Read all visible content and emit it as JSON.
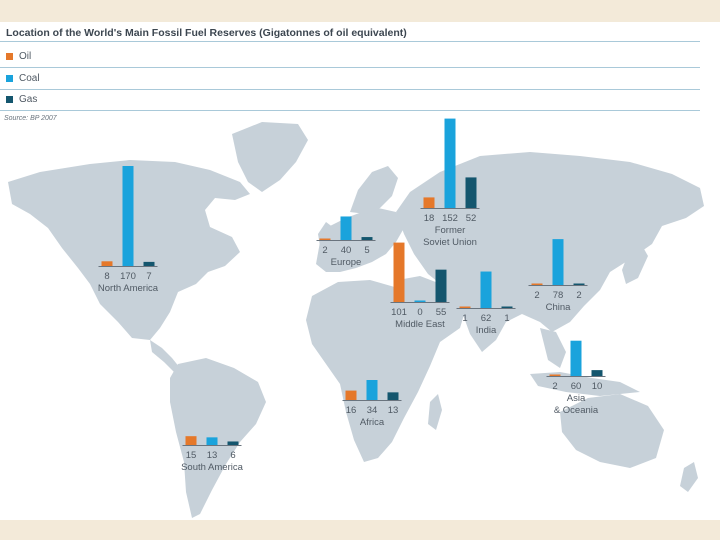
{
  "chart_data": {
    "type": "bar",
    "title": "Location of the World's Main Fossil Fuel Reserves (Gigatonnes of oil equivalent)",
    "source": "Source: BP 2007",
    "legend": [
      {
        "name": "Oil",
        "color": "#e5782a"
      },
      {
        "name": "Coal",
        "color": "#1aa3dc"
      },
      {
        "name": "Gas",
        "color": "#14566e"
      }
    ],
    "categories": [
      "Oil",
      "Coal",
      "Gas"
    ],
    "regions": [
      {
        "name": [
          "North America"
        ],
        "values": [
          8,
          170,
          7
        ]
      },
      {
        "name": [
          "Former",
          "Soviet Union"
        ],
        "values": [
          18,
          152,
          52
        ]
      },
      {
        "name": [
          "Europe"
        ],
        "values": [
          2,
          40,
          5
        ]
      },
      {
        "name": [
          "Middle East"
        ],
        "values": [
          101,
          0,
          55
        ]
      },
      {
        "name": [
          "India"
        ],
        "values": [
          1,
          62,
          1
        ]
      },
      {
        "name": [
          "China"
        ],
        "values": [
          2,
          78,
          2
        ]
      },
      {
        "name": [
          "Asia",
          "& Oceania"
        ],
        "values": [
          2,
          60,
          10
        ]
      },
      {
        "name": [
          "Africa"
        ],
        "values": [
          16,
          34,
          13
        ]
      },
      {
        "name": [
          "South America"
        ],
        "values": [
          15,
          13,
          6
        ]
      }
    ]
  }
}
